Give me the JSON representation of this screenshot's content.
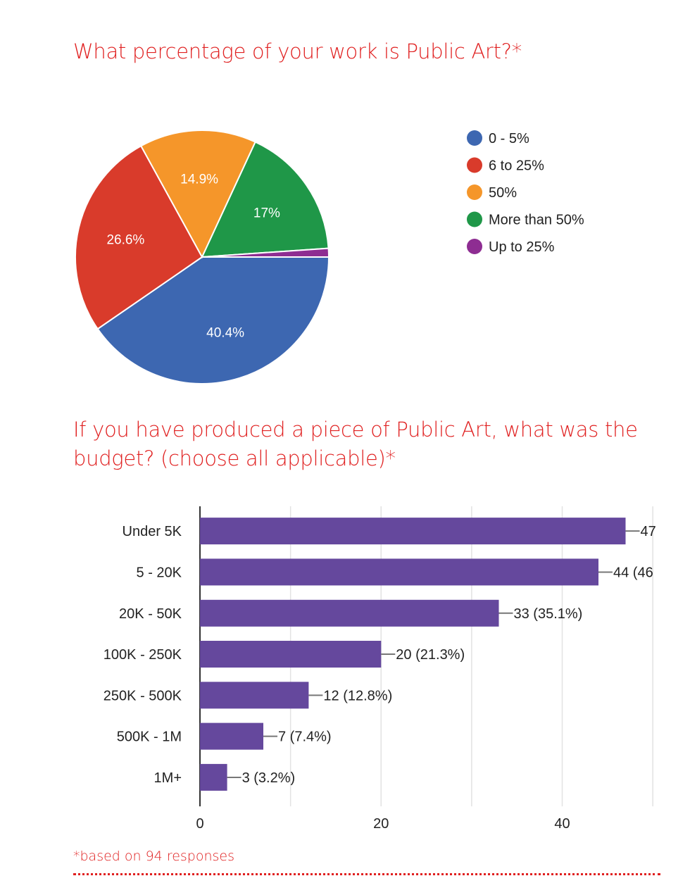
{
  "question1": {
    "title": "What percentage of your work is Public Art?*"
  },
  "question2": {
    "title": " If you have produced a piece of Public Art, what was the budget? (choose all applicable)*"
  },
  "footnote": "*based on 94 responses",
  "chart_data": [
    {
      "type": "pie",
      "title": "What percentage of your work is Public Art?*",
      "legend_position": "right",
      "slices": [
        {
          "label": "0 - 5%",
          "value": 40.4,
          "display": "40.4%",
          "color": "#3d67b1"
        },
        {
          "label": "6 to 25%",
          "value": 26.6,
          "display": "26.6%",
          "color": "#d93b2b"
        },
        {
          "label": "50%",
          "value": 14.9,
          "display": "14.9%",
          "color": "#f5962a"
        },
        {
          "label": "More than 50%",
          "value": 17.0,
          "display": "17%",
          "color": "#1f9748"
        },
        {
          "label": "Up to 25%",
          "value": 1.1,
          "display": "",
          "color": "#8e2d92"
        }
      ]
    },
    {
      "type": "bar",
      "orientation": "horizontal",
      "title": "If you have produced a piece of Public Art, what was the budget? (choose all applicable)*",
      "categories": [
        "Under 5K",
        "5 - 20K",
        "20K - 50K",
        "100K - 250K",
        "250K - 500K",
        "500K - 1M",
        "1M+"
      ],
      "values": [
        47,
        44,
        33,
        20,
        12,
        7,
        3
      ],
      "data_labels": [
        "47",
        "44 (46",
        "33 (35.1%)",
        "20 (21.3%)",
        "12 (12.8%)",
        "7 (7.4%)",
        "3 (3.2%)"
      ],
      "xticks": [
        0,
        20,
        40
      ],
      "xlim": [
        0,
        51
      ],
      "grid": true,
      "color": "#65489d"
    }
  ]
}
